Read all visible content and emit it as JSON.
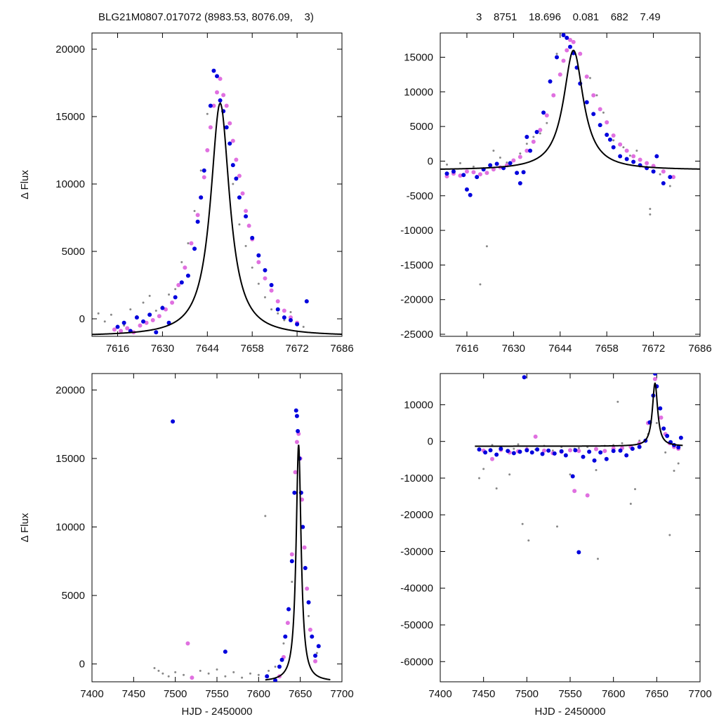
{
  "header": {
    "left": "BLG21M0807.017072 (8983.53, 8076.09,    3)",
    "right": "3    8751    18.696    0.081    682    7.49"
  },
  "colors": {
    "series_a": "#0000dd",
    "series_b": "#e070e0",
    "series_c": "#888888",
    "model": "#000000"
  },
  "model": {
    "t0": 7648,
    "peak": 16000,
    "base": -1300,
    "width": 3.6
  },
  "chart_data": [
    {
      "id": "top-left",
      "type": "scatter",
      "title": "",
      "xlabel": "",
      "ylabel": "Δ Flux",
      "xlim": [
        7608,
        7686
      ],
      "ylim": [
        -1300,
        21200
      ],
      "xticks": [
        7616,
        7630,
        7644,
        7658,
        7672,
        7686
      ],
      "yticks": [
        0,
        5000,
        10000,
        15000,
        20000
      ],
      "model_range": [
        7608,
        7686
      ],
      "series": [
        {
          "key": "series_c",
          "x": [
            7610,
            7612,
            7614,
            7618,
            7620,
            7622,
            7624,
            7626,
            7628,
            7630,
            7632,
            7634,
            7636,
            7638,
            7640,
            7642,
            7644,
            7652,
            7654,
            7656,
            7658,
            7660,
            7662,
            7664,
            7666,
            7668,
            7670,
            7672,
            7674
          ],
          "y": [
            400,
            -200,
            300,
            -500,
            700,
            200,
            1200,
            1700,
            600,
            900,
            1800,
            2200,
            4200,
            5600,
            8000,
            11000,
            15200,
            10000,
            7000,
            5400,
            3800,
            2600,
            1600,
            700,
            400,
            -100,
            500,
            -300,
            -600
          ]
        },
        {
          "key": "series_b",
          "x": [
            7615,
            7617,
            7619,
            7621,
            7623,
            7625,
            7627,
            7629,
            7631,
            7633,
            7635,
            7637,
            7639,
            7641,
            7642,
            7643,
            7644,
            7645,
            7646,
            7647,
            7648,
            7649,
            7650,
            7651,
            7652,
            7653,
            7654,
            7655,
            7656,
            7657,
            7658,
            7660,
            7662,
            7664,
            7666,
            7668,
            7670,
            7672
          ],
          "y": [
            -800,
            -900,
            -700,
            -1000,
            -500,
            -300,
            -100,
            200,
            700,
            1200,
            2500,
            3800,
            5600,
            7700,
            9000,
            10500,
            12500,
            14200,
            15800,
            16800,
            17800,
            16600,
            15800,
            14500,
            13200,
            11800,
            10600,
            9300,
            8000,
            6900,
            5900,
            4200,
            3000,
            2100,
            1300,
            600,
            100,
            -300
          ]
        },
        {
          "key": "series_a",
          "x": [
            7616,
            7618,
            7620,
            7622,
            7624,
            7626,
            7628,
            7630,
            7632,
            7634,
            7636,
            7638,
            7640,
            7641,
            7642,
            7643,
            7645,
            7646,
            7647,
            7648,
            7649,
            7650,
            7651,
            7652,
            7653,
            7654,
            7656,
            7658,
            7660,
            7662,
            7664,
            7666,
            7668,
            7670,
            7672,
            7675
          ],
          "y": [
            -600,
            -300,
            -900,
            100,
            -200,
            300,
            -1000,
            800,
            -300,
            1600,
            2700,
            3200,
            5200,
            7200,
            9000,
            11000,
            15800,
            18400,
            18000,
            16200,
            15400,
            14200,
            13000,
            11400,
            10400,
            9000,
            7600,
            6000,
            4700,
            3600,
            2500,
            700,
            100,
            -100,
            -400,
            1300
          ]
        }
      ]
    },
    {
      "id": "top-right",
      "type": "scatter",
      "title": "",
      "xlabel": "",
      "ylabel": "",
      "xlim": [
        7608,
        7686
      ],
      "ylim": [
        -25300,
        18500
      ],
      "xticks": [
        7616,
        7630,
        7644,
        7658,
        7672,
        7686
      ],
      "yticks": [
        -25000,
        -20000,
        -15000,
        -10000,
        -5000,
        0,
        5000,
        10000,
        15000
      ],
      "model_range": [
        7608,
        7686
      ],
      "series": [
        {
          "key": "series_c",
          "x": [
            7610,
            7614,
            7618,
            7620,
            7622,
            7624,
            7626,
            7628,
            7632,
            7634,
            7636,
            7638,
            7640,
            7643,
            7653,
            7655,
            7657,
            7660,
            7663,
            7665,
            7667,
            7670,
            7671,
            7671,
            7674,
            7677
          ],
          "y": [
            -500,
            -300,
            -800,
            -17800,
            -12300,
            1500,
            500,
            -200,
            1100,
            2500,
            3500,
            4000,
            5500,
            15500,
            12000,
            9500,
            7000,
            3000,
            2000,
            800,
            1500,
            -200,
            -6900,
            -7700,
            -1900,
            -3600
          ]
        },
        {
          "key": "series_b",
          "x": [
            7610,
            7612,
            7614,
            7616,
            7618,
            7620,
            7622,
            7624,
            7626,
            7628,
            7630,
            7632,
            7634,
            7636,
            7638,
            7640,
            7642,
            7644,
            7645,
            7646,
            7647,
            7648,
            7650,
            7652,
            7654,
            7656,
            7658,
            7660,
            7662,
            7664,
            7666,
            7668,
            7670,
            7672,
            7675,
            7678
          ],
          "y": [
            -2200,
            -1800,
            -2100,
            -1500,
            -1600,
            -1900,
            -1700,
            -1200,
            -900,
            -600,
            100,
            600,
            1500,
            2800,
            4500,
            6600,
            9500,
            12500,
            14500,
            16000,
            17500,
            17200,
            15500,
            12200,
            9500,
            7500,
            5600,
            3700,
            2400,
            1500,
            700,
            200,
            -300,
            -700,
            -1500,
            -2300
          ]
        },
        {
          "key": "series_a",
          "x": [
            7610,
            7612,
            7615,
            7616,
            7617,
            7619,
            7621,
            7623,
            7625,
            7627,
            7629,
            7631,
            7632,
            7633,
            7634,
            7635,
            7637,
            7639,
            7641,
            7643,
            7645,
            7646,
            7647,
            7648,
            7649,
            7650,
            7652,
            7654,
            7656,
            7658,
            7659,
            7660,
            7662,
            7664,
            7666,
            7668,
            7670,
            7672,
            7673,
            7675,
            7677
          ],
          "y": [
            -1800,
            -1500,
            -2000,
            -4100,
            -4900,
            -2300,
            -1200,
            -600,
            -400,
            -1000,
            -300,
            -1700,
            -3200,
            -1600,
            3500,
            1500,
            4200,
            7000,
            11500,
            15000,
            18200,
            17800,
            16500,
            15600,
            13500,
            11200,
            8500,
            6800,
            5200,
            3800,
            3100,
            2000,
            700,
            300,
            -100,
            -600,
            -1000,
            -1500,
            700,
            -3200,
            -2300
          ]
        }
      ]
    },
    {
      "id": "bottom-left",
      "type": "scatter",
      "title": "",
      "xlabel": "HJD - 2450000",
      "ylabel": "Δ Flux",
      "xlim": [
        7400,
        7700
      ],
      "ylim": [
        -1300,
        21200
      ],
      "xticks": [
        7400,
        7450,
        7500,
        7550,
        7600,
        7650,
        7700
      ],
      "yticks": [
        0,
        5000,
        10000,
        15000,
        20000
      ],
      "model_range": [
        7608,
        7686
      ],
      "series": [
        {
          "key": "series_c",
          "x": [
            7475,
            7480,
            7485,
            7492,
            7500,
            7510,
            7520,
            7530,
            7540,
            7550,
            7560,
            7570,
            7580,
            7590,
            7600,
            7608,
            7612,
            7620,
            7630,
            7640,
            7660,
            7670
          ],
          "y": [
            -300,
            -500,
            -700,
            -900,
            -600,
            -800,
            -1000,
            -500,
            -700,
            -400,
            -900,
            -600,
            -1000,
            -700,
            -800,
            10800,
            -500,
            -200,
            1500,
            6000,
            3500,
            800
          ]
        },
        {
          "key": "series_b",
          "x": [
            7515,
            7520,
            7625,
            7630,
            7635,
            7640,
            7644,
            7646,
            7648,
            7650,
            7652,
            7655,
            7658,
            7662,
            7668
          ],
          "y": [
            1500,
            -1000,
            -900,
            500,
            3000,
            8000,
            14000,
            16200,
            16800,
            15000,
            12000,
            8500,
            5500,
            2500,
            200
          ]
        },
        {
          "key": "series_a",
          "x": [
            7497,
            7560,
            7610,
            7620,
            7625,
            7628,
            7632,
            7636,
            7640,
            7643,
            7645,
            7646,
            7647,
            7649,
            7651,
            7653,
            7656,
            7660,
            7664,
            7668,
            7672
          ],
          "y": [
            17700,
            900,
            -900,
            -1200,
            -200,
            300,
            2000,
            4000,
            7500,
            12500,
            18500,
            18100,
            17000,
            15000,
            12500,
            10000,
            7000,
            4500,
            2000,
            600,
            1300
          ]
        }
      ]
    },
    {
      "id": "bottom-right",
      "type": "scatter",
      "title": "",
      "xlabel": "HJD - 2450000",
      "ylabel": "",
      "xlim": [
        7400,
        7700
      ],
      "ylim": [
        -65500,
        18500
      ],
      "xticks": [
        7400,
        7450,
        7500,
        7550,
        7600,
        7650,
        7700
      ],
      "yticks": [
        -60000,
        -50000,
        -40000,
        -30000,
        -20000,
        -10000,
        0,
        10000
      ],
      "model_range": [
        7440,
        7680
      ],
      "series": [
        {
          "key": "series_c",
          "x": [
            7445,
            7450,
            7460,
            7465,
            7470,
            7480,
            7485,
            7490,
            7495,
            7500,
            7502,
            7510,
            7520,
            7530,
            7535,
            7540,
            7550,
            7555,
            7560,
            7570,
            7580,
            7582,
            7590,
            7600,
            7605,
            7610,
            7620,
            7625,
            7630,
            7640,
            7650,
            7660,
            7665,
            7670,
            7675
          ],
          "y": [
            -10000,
            -7500,
            -1000,
            -12800,
            -1500,
            -9000,
            -2000,
            -800,
            -22500,
            -1800,
            -27000,
            -2200,
            -1200,
            -2500,
            -23200,
            -1500,
            -9000,
            -2000,
            -1800,
            -1500,
            -7800,
            -32000,
            -1200,
            -1000,
            10800,
            -500,
            -17000,
            -13000,
            200,
            2000,
            5000,
            -3000,
            -25500,
            -8000,
            -6000
          ]
        },
        {
          "key": "series_b",
          "x": [
            7450,
            7460,
            7470,
            7480,
            7490,
            7500,
            7510,
            7520,
            7530,
            7540,
            7550,
            7555,
            7560,
            7570,
            7580,
            7590,
            7600,
            7610,
            7620,
            7630,
            7640,
            7648,
            7655,
            7660,
            7665,
            7670,
            7675
          ],
          "y": [
            -2500,
            -4800,
            -2300,
            -3000,
            -2700,
            -2200,
            1300,
            -2500,
            -3200,
            -2800,
            -2400,
            -13500,
            -2600,
            -14700,
            -2100,
            -2600,
            -1900,
            -1800,
            -1500,
            -500,
            5000,
            17000,
            6500,
            2000,
            -500,
            -1500,
            -2000
          ]
        },
        {
          "key": "series_a",
          "x": [
            7445,
            7452,
            7458,
            7465,
            7470,
            7478,
            7485,
            7492,
            7497,
            7500,
            7506,
            7512,
            7518,
            7525,
            7532,
            7540,
            7545,
            7553,
            7556,
            7560,
            7565,
            7572,
            7578,
            7585,
            7592,
            7600,
            7608,
            7615,
            7622,
            7630,
            7637,
            7642,
            7646,
            7648,
            7650,
            7654,
            7658,
            7662,
            7666,
            7670,
            7675,
            7678
          ],
          "y": [
            -2200,
            -3000,
            -2400,
            -3600,
            -2000,
            -2600,
            -3200,
            -2800,
            17500,
            -2400,
            -3000,
            -2200,
            -3400,
            -2500,
            -3300,
            -2700,
            -3800,
            -9500,
            -2400,
            -30200,
            -4200,
            -2800,
            -5200,
            -3000,
            -4800,
            -2600,
            -2500,
            -3800,
            -2000,
            -1500,
            200,
            5200,
            12500,
            18500,
            15000,
            9000,
            3500,
            1500,
            -200,
            -1000,
            -1600,
            1000
          ]
        }
      ]
    }
  ]
}
